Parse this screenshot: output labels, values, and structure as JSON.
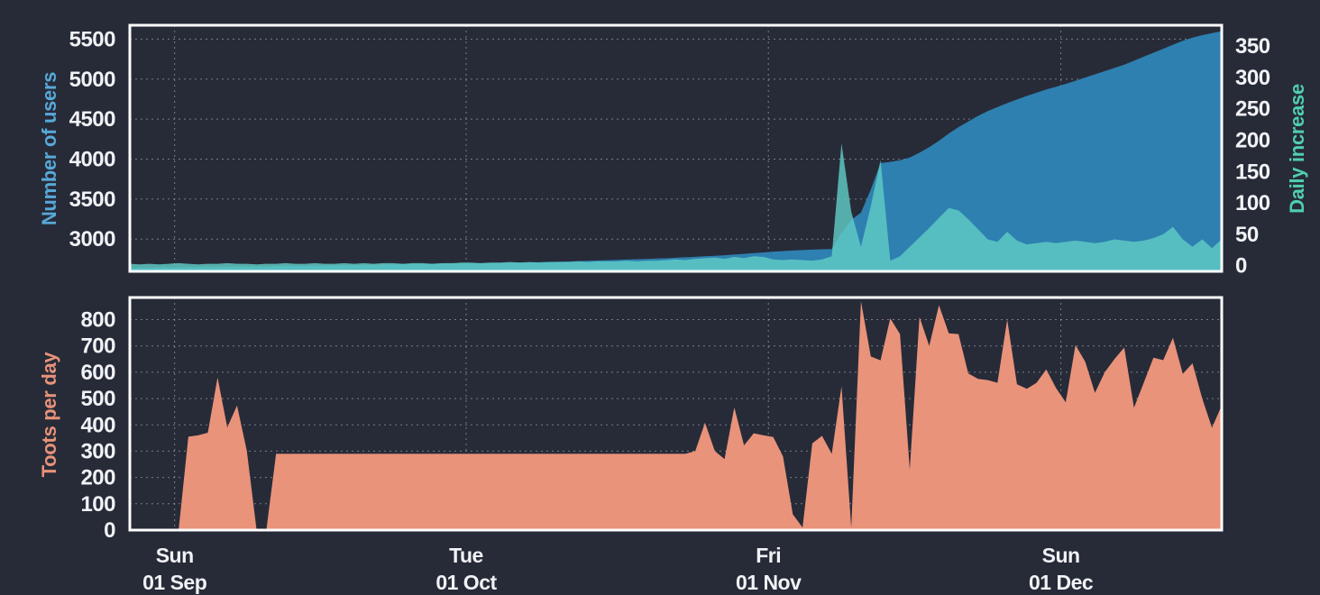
{
  "chart_data": [
    {
      "id": "users-growth",
      "type": "area",
      "x_ticks": [
        {
          "pos": 4.6,
          "line1": "Sun",
          "line2": "01 Sep"
        },
        {
          "pos": 34.5,
          "line1": "Tue",
          "line2": "01 Oct"
        },
        {
          "pos": 65.5,
          "line1": "Fri",
          "line2": "01 Nov"
        },
        {
          "pos": 95.5,
          "line1": "Sun",
          "line2": "01 Dec"
        }
      ],
      "left_axis": {
        "label": "Number of users",
        "label_color": "#57a9d9",
        "ticks": [
          5500,
          5000,
          4500,
          4000,
          3500,
          3000
        ],
        "min": 2596,
        "max": 5674
      },
      "right_axis": {
        "label": "Daily increase",
        "label_color": "#4fcfae",
        "ticks": [
          350,
          300,
          250,
          200,
          150,
          100,
          50,
          0
        ],
        "min": -9,
        "max": 383
      },
      "series": [
        {
          "name": "Number of users",
          "axis": "left",
          "color": "#2e80b0",
          "opacity": 1,
          "values": [
            2640,
            2641,
            2642,
            2643,
            2645,
            2646,
            2647,
            2648,
            2649,
            2650,
            2652,
            2653,
            2654,
            2656,
            2657,
            2659,
            2660,
            2662,
            2664,
            2666,
            2668,
            2670,
            2672,
            2674,
            2676,
            2678,
            2680,
            2682,
            2685,
            2688,
            2690,
            2691,
            2692,
            2693,
            2694,
            2695,
            2697,
            2699,
            2701,
            2703,
            2705,
            2708,
            2711,
            2714,
            2717,
            2720,
            2724,
            2728,
            2732,
            2736,
            2740,
            2744,
            2748,
            2752,
            2756,
            2760,
            2766,
            2772,
            2778,
            2784,
            2790,
            2798,
            2806,
            2815,
            2824,
            2833,
            2843,
            2850,
            2856,
            2862,
            2868,
            2872,
            2876,
            3075,
            3240,
            3330,
            3620,
            3950,
            3965,
            3985,
            4020,
            4080,
            4150,
            4230,
            4320,
            4400,
            4470,
            4540,
            4600,
            4650,
            4700,
            4745,
            4790,
            4830,
            4870,
            4905,
            4940,
            4980,
            5020,
            5060,
            5100,
            5140,
            5180,
            5230,
            5280,
            5330,
            5380,
            5430,
            5480,
            5520,
            5550,
            5575,
            5600
          ]
        },
        {
          "name": "Daily increase",
          "axis": "right",
          "color": "#5fccc4",
          "opacity": 0.82,
          "values": [
            3,
            2,
            3,
            2,
            3,
            4,
            3,
            2,
            3,
            3,
            4,
            3,
            3,
            2,
            3,
            3,
            4,
            3,
            3,
            4,
            3,
            3,
            4,
            3,
            4,
            3,
            4,
            4,
            3,
            4,
            4,
            3,
            4,
            4,
            5,
            5,
            4,
            5,
            5,
            6,
            5,
            6,
            5,
            6,
            6,
            6,
            7,
            6,
            7,
            7,
            7,
            8,
            7,
            8,
            8,
            9,
            10,
            9,
            11,
            12,
            13,
            11,
            14,
            12,
            15,
            14,
            10,
            9,
            10,
            9,
            8,
            10,
            15,
            195,
            86,
            30,
            95,
            168,
            8,
            15,
            30,
            45,
            60,
            76,
            92,
            88,
            74,
            58,
            42,
            38,
            54,
            40,
            34,
            36,
            38,
            36,
            38,
            40,
            38,
            36,
            38,
            42,
            40,
            38,
            40,
            44,
            50,
            62,
            42,
            30,
            42,
            28,
            42
          ]
        }
      ]
    },
    {
      "id": "toots-per-day",
      "type": "area",
      "x_ticks": [
        {
          "pos": 4.6,
          "line1": "Sun",
          "line2": "01 Sep"
        },
        {
          "pos": 34.5,
          "line1": "Tue",
          "line2": "01 Oct"
        },
        {
          "pos": 65.5,
          "line1": "Fri",
          "line2": "01 Nov"
        },
        {
          "pos": 95.5,
          "line1": "Sun",
          "line2": "01 Dec"
        }
      ],
      "left_axis": {
        "label": "Toots per day",
        "label_color": "#e8927a",
        "ticks": [
          800,
          700,
          600,
          500,
          400,
          300,
          200,
          100,
          0
        ],
        "min": 0,
        "max": 884
      },
      "series": [
        {
          "name": "Toots per day",
          "axis": "left",
          "color": "#e9937b",
          "opacity": 1,
          "values": [
            0,
            0,
            0,
            0,
            0,
            0,
            355,
            360,
            370,
            580,
            390,
            474,
            300,
            0,
            0,
            290,
            290,
            290,
            290,
            290,
            290,
            290,
            290,
            290,
            290,
            290,
            290,
            290,
            290,
            290,
            290,
            290,
            290,
            290,
            290,
            290,
            290,
            290,
            290,
            290,
            290,
            290,
            290,
            290,
            290,
            290,
            290,
            290,
            290,
            290,
            290,
            290,
            290,
            290,
            290,
            290,
            290,
            290,
            300,
            408,
            300,
            270,
            466,
            322,
            368,
            360,
            354,
            280,
            60,
            10,
            330,
            358,
            290,
            546,
            10,
            870,
            660,
            645,
            805,
            745,
            230,
            810,
            700,
            855,
            748,
            745,
            595,
            575,
            570,
            560,
            800,
            554,
            537,
            560,
            611,
            540,
            486,
            703,
            640,
            522,
            600,
            650,
            694,
            465,
            560,
            655,
            646,
            731,
            594,
            634,
            500,
            389,
            474
          ]
        }
      ]
    }
  ],
  "style": {
    "grid_color": "#c9ced8",
    "frame_color": "#ffffff",
    "tick_label_color": "#f1f2f5",
    "background": "#272b38"
  }
}
